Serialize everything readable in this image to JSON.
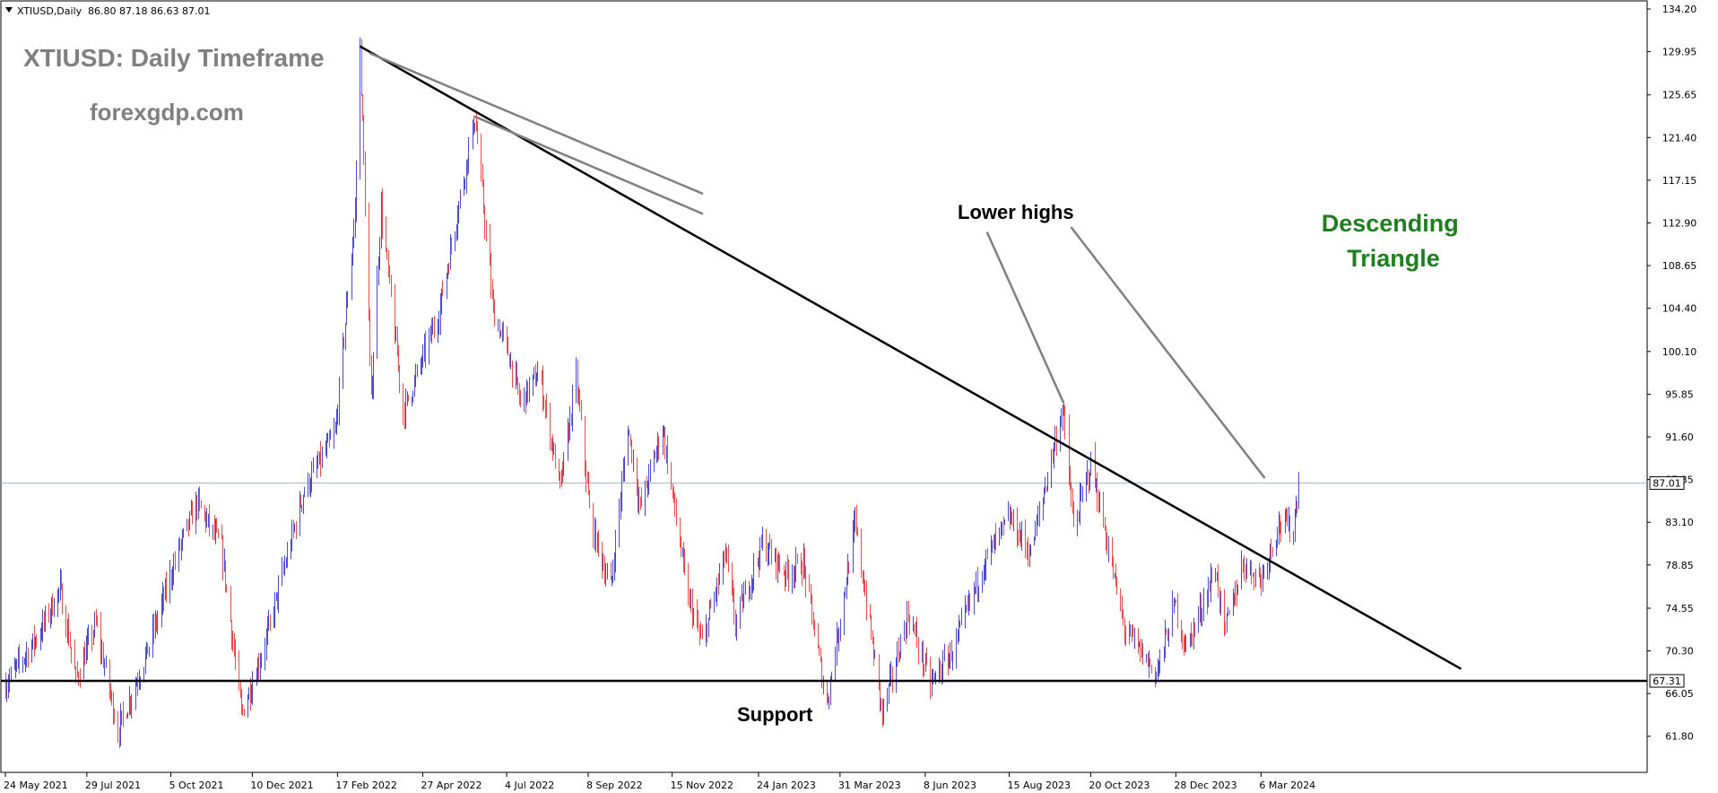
{
  "header": {
    "symbol": "XTIUSD,Daily",
    "ohlc": "86.80 87.18 86.63 87.01"
  },
  "chart_data": {
    "type": "candlestick",
    "title": "XTIUSD: Daily Timeframe",
    "watermark": "forexgdp.com",
    "pattern_label": "Descending Triangle",
    "lower_highs_label": "Lower highs",
    "support_label": "Support",
    "current_price": 87.01,
    "current_price_label": "87.01",
    "support_price": 67.31,
    "support_price_label": "67.31",
    "ylim": [
      59.9,
      134.2
    ],
    "y_ticks": [
      "134.20",
      "129.95",
      "125.65",
      "121.40",
      "117.15",
      "112.90",
      "108.65",
      "104.40",
      "100.10",
      "95.85",
      "91.60",
      "87.35",
      "83.10",
      "78.85",
      "74.55",
      "70.30",
      "66.05",
      "61.80"
    ],
    "x_ticks": [
      "24 May 2021",
      "29 Jul 2021",
      "5 Oct 2021",
      "10 Dec 2021",
      "17 Feb 2022",
      "27 Apr 2022",
      "4 Jul 2022",
      "8 Sep 2022",
      "15 Nov 2022",
      "24 Jan 2023",
      "31 Mar 2023",
      "8 Jun 2023",
      "15 Aug 2023",
      "20 Oct 2023",
      "28 Dec 2023",
      "6 Mar 2024"
    ],
    "path_points": [
      [
        "2021-05-24",
        67.0
      ],
      [
        "2021-06-20",
        72.0
      ],
      [
        "2021-07-07",
        76.5
      ],
      [
        "2021-07-20",
        67.5
      ],
      [
        "2021-08-05",
        73.0
      ],
      [
        "2021-08-23",
        62.3
      ],
      [
        "2021-09-15",
        70.0
      ],
      [
        "2021-10-10",
        80.0
      ],
      [
        "2021-10-26",
        85.0
      ],
      [
        "2021-11-15",
        80.5
      ],
      [
        "2021-12-01",
        64.0
      ],
      [
        "2021-12-20",
        71.0
      ],
      [
        "2022-01-20",
        86.0
      ],
      [
        "2022-02-15",
        92.0
      ],
      [
        "2022-03-03",
        114.0
      ],
      [
        "2022-03-07",
        130.5
      ],
      [
        "2022-03-16",
        95.0
      ],
      [
        "2022-03-24",
        114.5
      ],
      [
        "2022-04-11",
        94.0
      ],
      [
        "2022-05-10",
        104.0
      ],
      [
        "2022-06-08",
        123.5
      ],
      [
        "2022-06-23",
        104.0
      ],
      [
        "2022-07-05",
        100.0
      ],
      [
        "2022-07-15",
        95.0
      ],
      [
        "2022-07-30",
        98.0
      ],
      [
        "2022-08-16",
        86.5
      ],
      [
        "2022-08-29",
        97.5
      ],
      [
        "2022-09-10",
        83.0
      ],
      [
        "2022-09-26",
        76.5
      ],
      [
        "2022-10-10",
        92.5
      ],
      [
        "2022-10-20",
        84.5
      ],
      [
        "2022-11-07",
        92.5
      ],
      [
        "2022-11-27",
        76.0
      ],
      [
        "2022-12-09",
        71.0
      ],
      [
        "2022-12-28",
        80.0
      ],
      [
        "2023-01-05",
        73.0
      ],
      [
        "2023-01-27",
        81.0
      ],
      [
        "2023-02-15",
        78.0
      ],
      [
        "2023-03-01",
        79.0
      ],
      [
        "2023-03-20",
        65.0
      ],
      [
        "2023-04-12",
        83.0
      ],
      [
        "2023-05-04",
        64.0
      ],
      [
        "2023-05-25",
        74.0
      ],
      [
        "2023-06-12",
        67.0
      ],
      [
        "2023-07-01",
        70.5
      ],
      [
        "2023-07-25",
        79.0
      ],
      [
        "2023-08-15",
        83.5
      ],
      [
        "2023-09-01",
        80.0
      ],
      [
        "2023-09-27",
        94.5
      ],
      [
        "2023-10-06",
        82.5
      ],
      [
        "2023-10-20",
        89.0
      ],
      [
        "2023-11-16",
        72.5
      ],
      [
        "2023-12-12",
        68.0
      ],
      [
        "2023-12-27",
        75.0
      ],
      [
        "2024-01-05",
        70.5
      ],
      [
        "2024-01-29",
        78.5
      ],
      [
        "2024-02-05",
        72.0
      ],
      [
        "2024-02-20",
        79.0
      ],
      [
        "2024-03-06",
        77.5
      ],
      [
        "2024-03-20",
        83.0
      ],
      [
        "2024-04-01",
        82.5
      ],
      [
        "2024-04-05",
        87.0
      ]
    ],
    "trendline": {
      "start": [
        "2022-03-07",
        130.5
      ],
      "end": [
        "2024-08-15",
        68.5
      ]
    },
    "pointer_lines": [
      {
        "start": [
          "2022-03-15",
          129.8
        ],
        "end": [
          "2022-12-10",
          115.8
        ]
      },
      {
        "start": [
          "2022-06-08",
          123.5
        ],
        "end": [
          "2022-12-10",
          113.8
        ]
      },
      {
        "start": [
          "2023-07-28",
          112.0
        ],
        "end": [
          "2023-09-28",
          95.0
        ]
      },
      {
        "start": [
          "2023-10-04",
          112.5
        ],
        "end": [
          "2024-03-09",
          87.5
        ]
      }
    ],
    "colors": {
      "up": "#4a4ad6",
      "down": "#ee4a4a",
      "trendline": "#000000",
      "pointer": "#808080",
      "pattern_label": "#1e7f1e",
      "price_line": "#9fb3c8"
    }
  }
}
